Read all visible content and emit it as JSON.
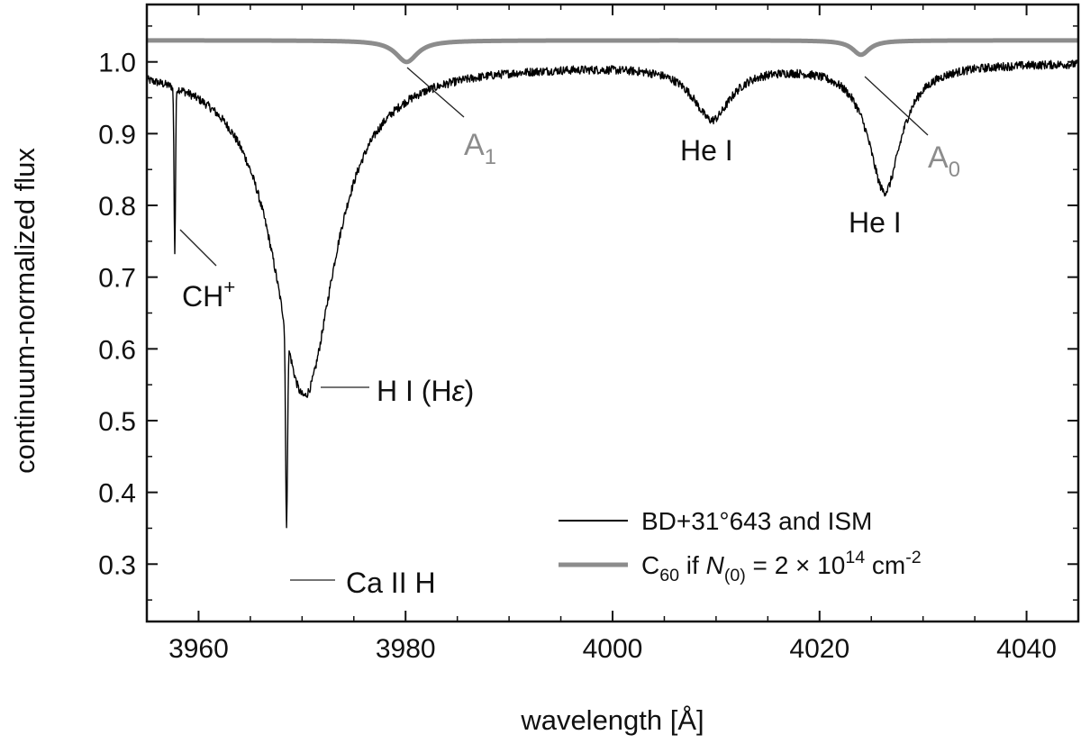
{
  "chart_data": {
    "type": "line",
    "xlabel": "wavelength [Å]",
    "ylabel": "continuum-normalized flux",
    "xlim": [
      3955,
      4045
    ],
    "ylim": [
      0.22,
      1.08
    ],
    "x_ticks": [
      3960,
      3980,
      4000,
      4020,
      4040
    ],
    "y_ticks": [
      0.3,
      0.4,
      0.5,
      0.6,
      0.7,
      0.8,
      0.9,
      1.0
    ],
    "y_tick_labels": [
      "0.3",
      "0.4",
      "0.5",
      "0.6",
      "0.7",
      "0.8",
      "0.9",
      "1.0"
    ],
    "grid": false,
    "legend_position": "bottom-right",
    "series": [
      {
        "name": "BD+31°643 and ISM",
        "color": "#000000",
        "continuum": 1.0,
        "noise": 0.006,
        "features": [
          {
            "center": 3970.2,
            "depth": 0.465,
            "width": 3.6
          },
          {
            "center": 4009.6,
            "depth": 0.075,
            "width": 2.2
          },
          {
            "center": 4026.3,
            "depth": 0.178,
            "width": 1.9
          },
          {
            "center": 3957.7,
            "depth": 0.23,
            "width": 0.07
          },
          {
            "center": 3968.5,
            "depth": 0.27,
            "width": 0.09
          }
        ]
      },
      {
        "name": "C60 if N(0) = 2 × 10^14 cm^-2",
        "color": "#8c8c8c",
        "continuum": 1.03,
        "features": [
          {
            "center": 3980.1,
            "depth": 0.03,
            "width": 1.3
          },
          {
            "center": 4024.0,
            "depth": 0.02,
            "width": 1.0
          }
        ]
      }
    ],
    "annotations": [
      {
        "id": "ch-plus",
        "main": "CH",
        "sup": "+",
        "x": 3957.7,
        "y": 0.77
      },
      {
        "id": "hi-heps",
        "main": "H I (H",
        "italic": "ε",
        "tail": ")",
        "x": 3970.2,
        "y": 0.54
      },
      {
        "id": "caii-h",
        "main": "Ca II H",
        "x": 3968.5,
        "y": 0.28
      },
      {
        "id": "hei-4009",
        "main": "He I",
        "x": 4009.6,
        "y": 0.93
      },
      {
        "id": "hei-4026",
        "main": "He I",
        "x": 4026.3,
        "y": 0.82
      },
      {
        "id": "a1",
        "main": "A",
        "sub": "1",
        "x": 3980.1,
        "y": 1.0
      },
      {
        "id": "a0",
        "main": "A",
        "sub": "0",
        "x": 4024.0,
        "y": 1.01
      }
    ],
    "legend": [
      {
        "line": "black",
        "text": "BD+31°643 and ISM"
      },
      {
        "line": "gray",
        "pre": "C",
        "pre_sub": "60",
        "mid": " if ",
        "italic": "N",
        "italic_sub": "(0)",
        "eq": " = 2 × 10",
        "exp": "14",
        "unit": " cm",
        "unit_exp": "-2"
      }
    ]
  }
}
